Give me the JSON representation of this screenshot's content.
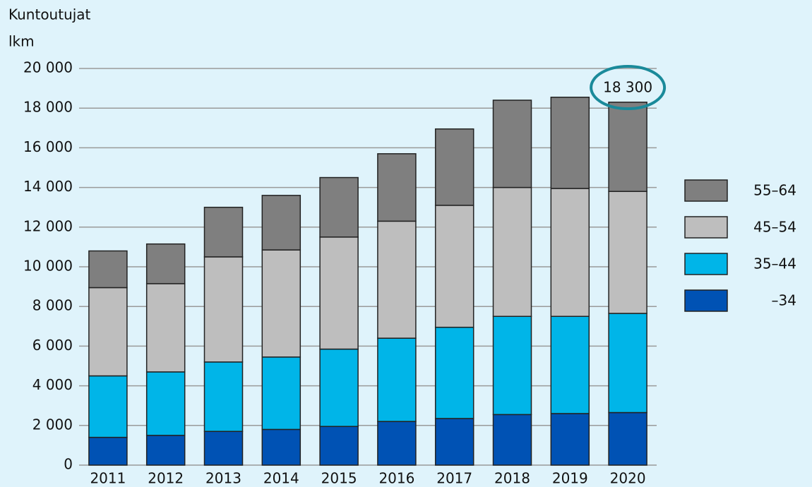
{
  "chart_data": {
    "type": "stacked_bar",
    "title": "Kuntoutujat",
    "y_label": "lkm",
    "categories": [
      "2011",
      "2012",
      "2013",
      "2014",
      "2015",
      "2016",
      "2017",
      "2018",
      "2019",
      "2020"
    ],
    "series": [
      {
        "name": "–34",
        "color": "#0052b4",
        "values": [
          1400,
          1500,
          1700,
          1800,
          1950,
          2200,
          2350,
          2550,
          2600,
          2650
        ]
      },
      {
        "name": "35–44",
        "color": "#00b5e8",
        "values": [
          3100,
          3200,
          3500,
          3650,
          3900,
          4200,
          4600,
          4950,
          4900,
          5000
        ]
      },
      {
        "name": "45–54",
        "color": "#bebebe",
        "values": [
          4450,
          4450,
          5300,
          5400,
          5650,
          5900,
          6150,
          6500,
          6450,
          6150
        ]
      },
      {
        "name": "55–64",
        "color": "#7f7f7f",
        "values": [
          1850,
          2000,
          2500,
          2750,
          3000,
          3400,
          3850,
          4400,
          4600,
          4500
        ]
      }
    ],
    "ylim": [
      0,
      20000
    ],
    "yticks": [
      0,
      {
        "value": 2000,
        "label": "2 000"
      },
      {
        "value": 4000,
        "label": "4 000"
      },
      {
        "value": 6000,
        "label": "6 000"
      },
      {
        "value": 8000,
        "label": "8 000"
      },
      {
        "value": 10000,
        "label": "10 000"
      },
      {
        "value": 12000,
        "label": "12 000"
      },
      {
        "value": 14000,
        "label": "14 000"
      },
      {
        "value": 16000,
        "label": "16 000"
      },
      {
        "value": 18000,
        "label": "18 000"
      },
      {
        "value": 20000,
        "label": "20 000"
      }
    ],
    "grid": true,
    "legend": "right",
    "annotation": {
      "text": "18 300",
      "value": 18300,
      "category": "2020",
      "color": "#1a8a9a"
    }
  }
}
